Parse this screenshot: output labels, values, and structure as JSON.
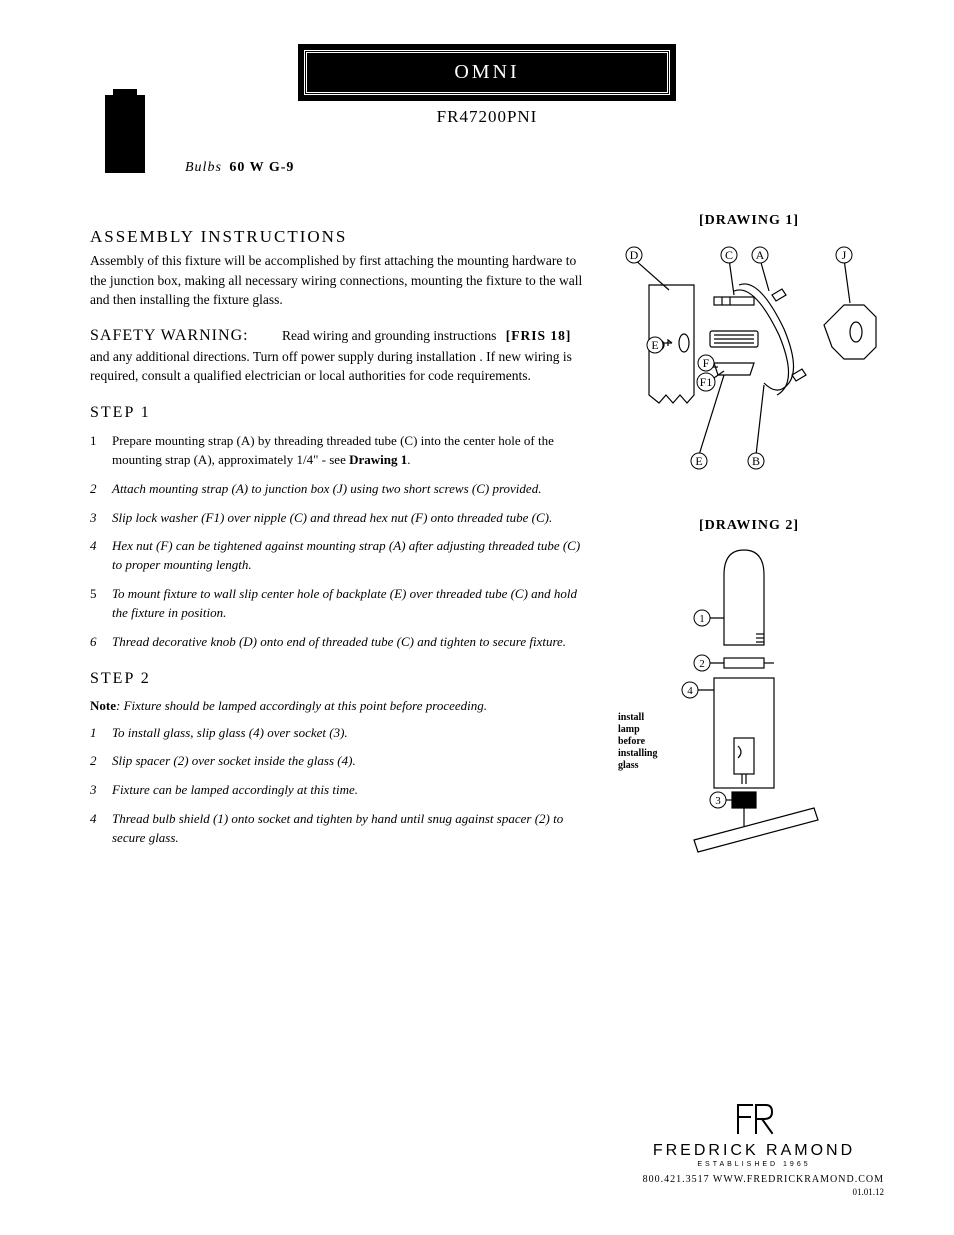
{
  "header": {
    "title": "OMNI",
    "model": "FR47200PNI",
    "bulbs_label": "Bulbs",
    "bulbs_value": "60 W G-9"
  },
  "assembly": {
    "heading": "ASSEMBLY INSTRUCTIONS",
    "intro": "Assembly of this fixture will be accomplished by first attaching the mounting hardware to the junction box, making all necessary wiring connections, mounting the fixture to the wall and then installing the fixture glass."
  },
  "safety": {
    "label": "SAFETY WARNING:",
    "text1": "Read wiring and grounding instructions",
    "fris": "[FRIS 18]",
    "text2": "and any additional directions.   Turn off power supply during installation .  If new wiring is required, consult a qualified electrician or local authorities for code requirements."
  },
  "step1": {
    "heading": "STEP  1",
    "items": [
      {
        "n": "1",
        "text_a": "Prepare mounting strap (A) by threading threaded tube (C) into the center hole of the mounting strap (A),  approximately 1/4\" - see  ",
        "ref": "Drawing 1",
        "text_b": ".",
        "upright": true
      },
      {
        "n": "2",
        "text_a": "Attach mounting strap (A) to junction box (J) using two short screws  (C) provided.",
        "ref": "",
        "text_b": ""
      },
      {
        "n": "3",
        "text_a": "Slip lock washer (F1) over nipple (C) and thread hex nut (F) onto threaded tube (C).",
        "ref": "",
        "text_b": ""
      },
      {
        "n": "4",
        "text_a": "Hex nut (F) can be tightened against mounting strap (A) after adjusting threaded tube (C) to proper mounting length.",
        "ref": "",
        "text_b": ""
      },
      {
        "n": "5",
        "text_a": "To mount fixture to wall slip center hole of backplate (E) over threaded tube (C) and hold the fixture in position.",
        "ref": "",
        "text_b": "",
        "num_upright": true
      },
      {
        "n": "6",
        "text_a": "Thread decorative knob (D) onto end of threaded tube (C) and tighten to secure fixture.",
        "ref": "",
        "text_b": ""
      }
    ]
  },
  "step2": {
    "heading": "STEP  2",
    "note_label": "Note",
    "note_text": ": Fixture should be lamped accordingly at this point before proceeding.",
    "items": [
      {
        "n": "1",
        "text": "To install glass, slip glass (4)  over socket (3)."
      },
      {
        "n": "2",
        "text": "Slip spacer (2)  over socket inside the glass (4)."
      },
      {
        "n": "3",
        "text": "Fixture can be lamped accordingly  at this time."
      },
      {
        "n": "4",
        "text": "Thread bulb shield (1) onto socket and tighten  by  hand until snug against spacer (2)  to secure glass."
      }
    ]
  },
  "drawings": {
    "d1_label": "[DRAWING 1]",
    "d2_label": "[DRAWING 2]",
    "d2_note_lines": [
      "install",
      "lamp",
      "before",
      "installing",
      "glass"
    ],
    "d1_callouts": [
      "A",
      "B",
      "C",
      "D",
      "E",
      "F",
      "F1",
      "J"
    ],
    "d2_callouts": [
      "1",
      "2",
      "3",
      "4"
    ]
  },
  "footer": {
    "brand": "FREDRICK RAMOND",
    "est": "ESTABLISHED 1965",
    "contact": "800.421.3517   WWW.FREDRICKRAMOND.COM",
    "date": "01.01.12"
  },
  "style": {
    "page_bg": "#ffffff",
    "text_color": "#000000",
    "titlebar_bg": "#000000",
    "titlebar_fg": "#ffffff",
    "line_color": "#000000",
    "body_fontsize_pt": 10,
    "heading_fontsize_pt": 13,
    "title_fontsize_pt": 16,
    "letter_spacing_heading": 2
  }
}
